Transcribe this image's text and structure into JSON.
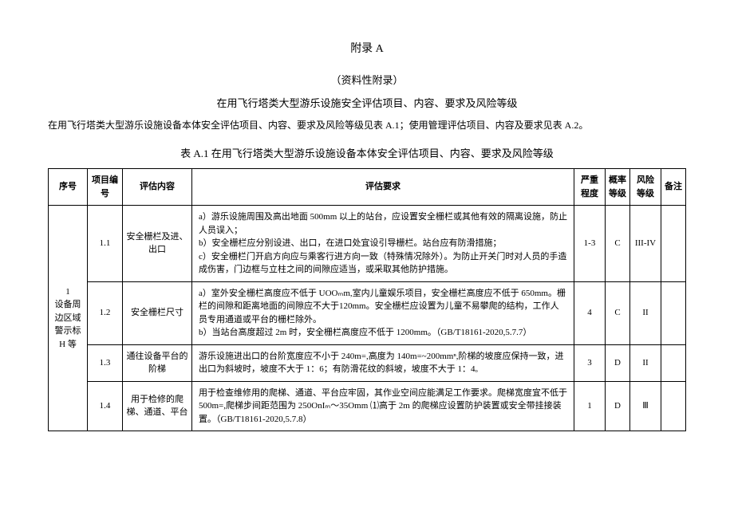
{
  "header": {
    "appendix": "附录 A",
    "subtitle": "（资料性附录）",
    "title": "在用飞行塔类大型游乐设施安全评估项目、内容、要求及风险等级",
    "intro": "在用飞行塔类大型游乐设施设备本体安全评估项目、内容、要求及风险等级见表 A.1；使用管理评估项目、内容及要求见表 A.2。",
    "table_title": "表 A.1 在用飞行塔类大型游乐设施设备本体安全评估项目、内容、要求及风险等级"
  },
  "table": {
    "columns": [
      "序号",
      "项目编号",
      "评估内容",
      "评估要求",
      "严重程度",
      "概率等级",
      "风险等级",
      "备注"
    ],
    "group_label": "设备周边区域警示标 H 等",
    "group_seq": "1",
    "rows": [
      {
        "itemno": "1.1",
        "content": "安全栅栏及进、出口",
        "req": "a）游乐设施周围及高出地面 500mm 以上的站台，应设置安全栅栏或其他有效的隔离设施，防止人员误入；\nb）安全栅栏应分别设进、出口，在进口处宜设引导栅栏。站台应有防滑措施；\nc）安全栅栏门开启方向应与乘客行进方向一致（特殊情况除外）。为防止开关门时对人员的手造成伤害，门边框与立柱之间的间隙应适当，或采取其他防护措施。",
        "sev": "1-3",
        "prob": "C",
        "risk": "III-IV",
        "note": ""
      },
      {
        "itemno": "1.2",
        "content": "安全栅栏尺寸",
        "req": "a）室外安全栅栏高度应不低于 UOOₘm,室内儿童娱乐项目，安全栅栏高度应不低于 650mm。栅栏的间隙和距离地面的间隙应不大于120mm。安全栅栏应设置为儿童不易攀爬的结构，工作人员专用通道或平台的栅栏除外。\nb）当站台高度超过 2m 时，安全栅栏高度应不低于 1200mm。（GB/T18161-2020,5.7.7）",
        "sev": "4",
        "prob": "C",
        "risk": "II",
        "note": ""
      },
      {
        "itemno": "1.3",
        "content": "通往设备平台的阶梯",
        "req": "游乐设施进出口的台阶宽度应不小于 240m=,高度为 140m=~200mmⁿ,阶梯的坡度应保持一致，进出口为斜坡时，坡度不大于 1：6；有防滑花纹的斜坡，坡度不大于 1：4ₒ",
        "sev": "3",
        "prob": "D",
        "risk": "II",
        "note": ""
      },
      {
        "itemno": "1.4",
        "content": "用于检修的爬梯、通道、平台",
        "req": "用于检查维修用的爬梯、通道、平台应牢固，其作业空间应能满足工作要求。爬梯宽度宜不低于 500m=,爬梯步间距范围为 250OnIₘ～35Omm ⑴高于 2m 的爬梯应设置防护装置或安全带挂接装置。（GB/T18161-2020,5.7.8）",
        "sev": "1",
        "prob": "D",
        "risk": "Ⅲ",
        "note": ""
      }
    ]
  }
}
